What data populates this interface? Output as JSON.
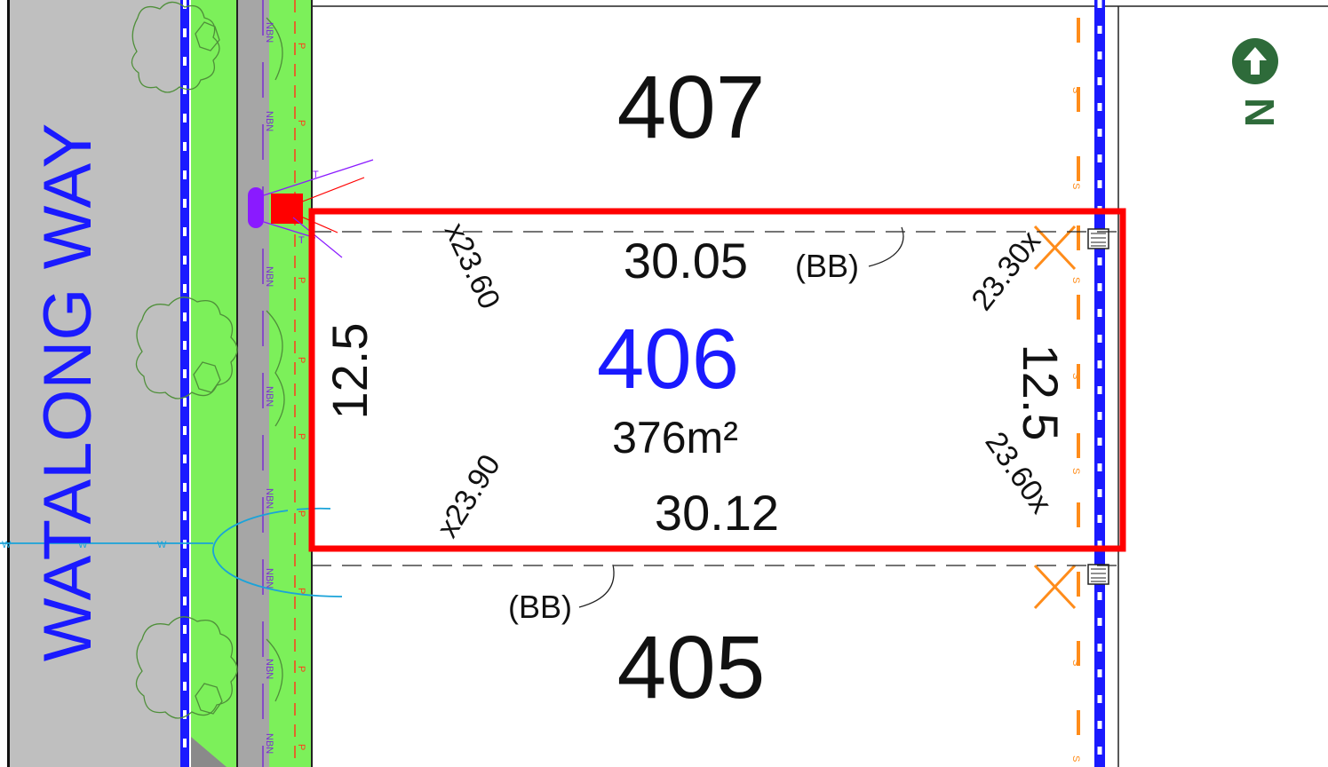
{
  "street": {
    "name": "WATALONG WAY"
  },
  "lots": {
    "north": {
      "number": "407"
    },
    "subject": {
      "number": "406",
      "area": "376m²",
      "frontage": "30.05",
      "rear": "30.12",
      "left_depth": "12.5",
      "right_depth": "12.5"
    },
    "south": {
      "number": "405"
    }
  },
  "spot_levels": {
    "top_left": "x23.60",
    "top_right": "23.30x",
    "bottom_left": "x23.90",
    "bottom_right": "23.60x"
  },
  "annotations": {
    "bb_top": "(BB)",
    "bb_bottom": "(BB)"
  },
  "service_labels": {
    "nbn": "NBN",
    "power": "P",
    "water": "W",
    "sewer": "S",
    "telecom": "T"
  },
  "north_arrow": {
    "letter": "N"
  },
  "colors": {
    "lot_outline": "#ff0000",
    "subject_number": "#1a1aff",
    "street_name": "#1a1aff",
    "road": "#bfbfbf",
    "verge": "#7cf05a",
    "sewer": "#ff8c1a",
    "north_arrow": "#2e6b3a",
    "water": "#1aa3d9"
  }
}
